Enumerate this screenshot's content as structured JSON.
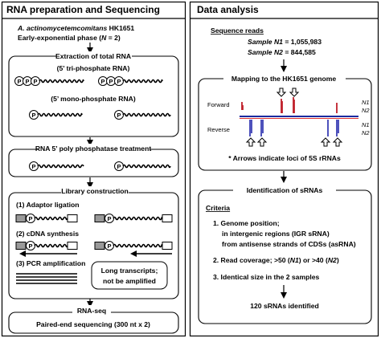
{
  "left": {
    "title": "RNA preparation and Sequencing",
    "strain": {
      "species": "A. actinomycetemcomitans",
      "strain_id": " HK1651",
      "phase_pre": "Early-exponential phase (",
      "n": "N",
      "phase_post": " = 2)"
    },
    "extraction": {
      "header": "Extraction of total RNA",
      "tri_label": "(5’ tri-phosphate RNA)",
      "mono_label": "(5’ mono-phosphate RNA)",
      "p": "P"
    },
    "phosphatase": {
      "label": "RNA 5’ poly phosphatase treatment"
    },
    "library": {
      "header": "Library construction",
      "step1": "(1) Adaptor ligation",
      "step2": "(2) cDNA synthesis",
      "step3": "(3) PCR amplification",
      "note_line1": "Long transcripts;",
      "note_line2": "not be amplified"
    },
    "seq": {
      "header": "RNA-seq",
      "label": "Paired-end sequencing (300 nt x 2)"
    }
  },
  "right": {
    "title": "Data analysis",
    "reads": {
      "header": "Sequence reads",
      "sample1_pre": "Sample N",
      "sample1_num": "1",
      "sample1_val": " = 1,055,983",
      "sample2_pre": "Sample N",
      "sample2_num": "2",
      "sample2_val": " =   844,585"
    },
    "mapping": {
      "header": "Mapping to the HK1651 genome",
      "forward": "Forward",
      "reverse": "Reverse",
      "n1": "N1",
      "n2": "N2",
      "note": "* Arrows indicate loci of 5S rRNAs"
    },
    "identification": {
      "header": "Identification of sRNAs",
      "criteria": "Criteria",
      "c1_line1": "1. Genome position;",
      "c1_line2": "in intergenic regions (IGR sRNA)",
      "c1_line3": "from antisense strands of CDSs (asRNA)",
      "c2_pre": "2. Read coverage; >50 (",
      "c2_n1": "N1",
      "c2_mid": ") or >40 (",
      "c2_n2": "N2",
      "c2_post": ")",
      "c3": "3. Identical size in the 2 samples",
      "result": "120 sRNAs identified"
    }
  },
  "colors": {
    "forward_peaks": "#c0202a",
    "reverse_peaks": "#3a3fb5",
    "ribbon": "#1a2aa0",
    "grey_box": "#c8c8c8"
  }
}
